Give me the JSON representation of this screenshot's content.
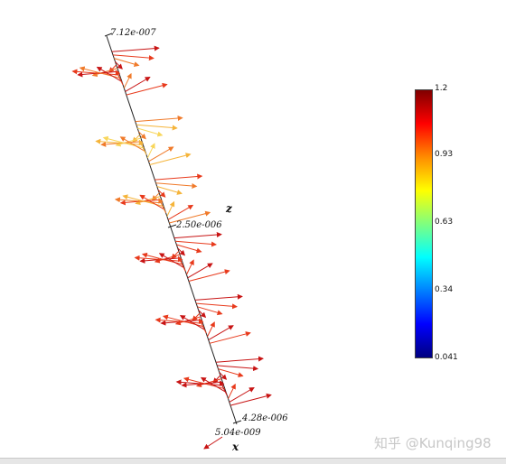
{
  "axis": {
    "top_label": "7.12e-007",
    "mid_label": "2.50e-006",
    "right_label": "4.28e-006",
    "bottom_label": "5.04e-009",
    "z_name": "z",
    "x_name": "x"
  },
  "colorbar": {
    "ticks": [
      "1.2",
      "0.93",
      "0.63",
      "0.34",
      "0.041"
    ],
    "colors": [
      "#800000",
      "#ff0000",
      "#ff8c00",
      "#ffff00",
      "#7fff7f",
      "#00ffff",
      "#0080ff",
      "#0000ff",
      "#000080"
    ]
  },
  "watermark": "知乎 @Kunqing98",
  "arrow_colors": {
    "strong": "#c81414",
    "medium": "#e83a1c",
    "light": "#f07a2a",
    "weak": "#f5b43a",
    "pale": "#f8d65a"
  }
}
